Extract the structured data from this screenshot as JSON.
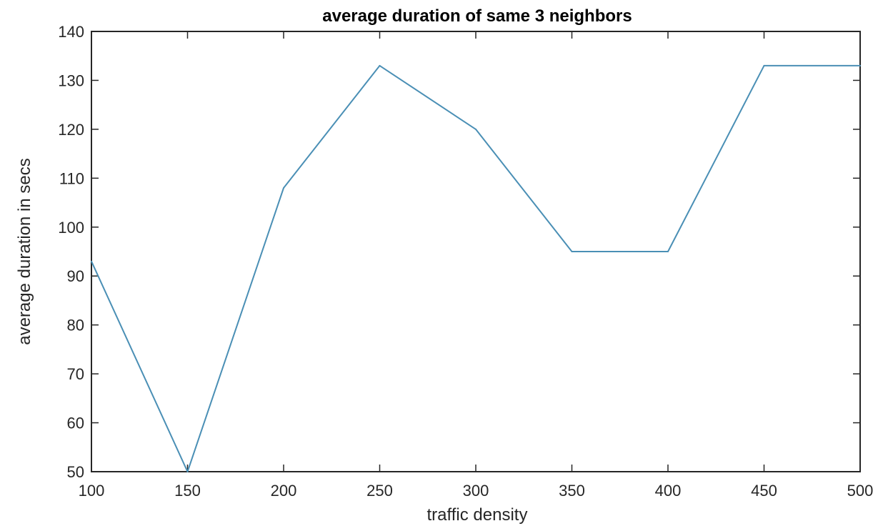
{
  "chart_data": {
    "type": "line",
    "title": "average duration of same 3 neighbors",
    "xlabel": "traffic density",
    "ylabel": "average duration in secs",
    "xlim": [
      100,
      500
    ],
    "ylim": [
      50,
      140
    ],
    "x_ticks": [
      "100",
      "150",
      "200",
      "250",
      "300",
      "350",
      "400",
      "450",
      "500"
    ],
    "y_ticks": [
      "50",
      "60",
      "70",
      "80",
      "90",
      "100",
      "110",
      "120",
      "130",
      "140"
    ],
    "grid": false,
    "legend": "none",
    "series": [
      {
        "color": "#4a8fb5",
        "x": [
          100,
          150,
          200,
          250,
          300,
          350,
          400,
          450,
          500
        ],
        "y": [
          93,
          50,
          108,
          133,
          120,
          95,
          95,
          133,
          133
        ]
      }
    ]
  }
}
